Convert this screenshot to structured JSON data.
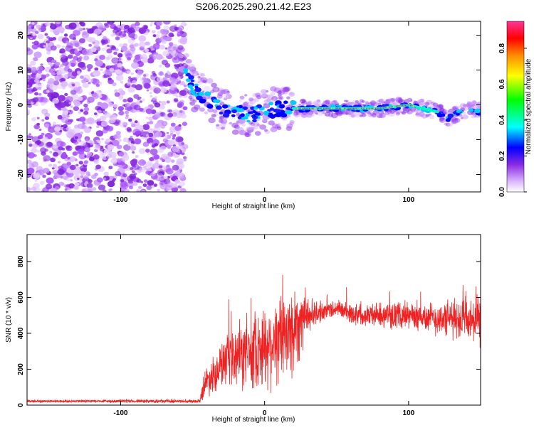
{
  "chart_data": [
    {
      "type": "heatmap",
      "title": "S206.2025.290.21.42.E23",
      "xlabel": "Height of straight line (km)",
      "ylabel": "Frequency (Hz)",
      "xlim": [
        -165,
        150
      ],
      "ylim": [
        -25,
        24
      ],
      "xticks": [
        -100,
        0,
        100
      ],
      "xtick_labels": [
        "-100",
        "0",
        "100"
      ],
      "yticks": [
        -20,
        -10,
        0,
        10,
        20
      ],
      "ytick_labels": [
        "-20",
        "-10",
        "0",
        "10",
        "20"
      ],
      "noise_region_x": [
        -165,
        -55
      ],
      "signal_track": {
        "x": [
          -55,
          -48,
          -40,
          -30,
          -20,
          -10,
          0,
          10,
          20,
          40,
          60,
          80,
          100,
          110,
          120,
          128,
          135,
          142,
          150
        ],
        "y": [
          9,
          4,
          2,
          -1,
          -2,
          -3,
          -2,
          -1,
          -1,
          -1,
          -1,
          -1,
          0,
          -1,
          -2,
          -4,
          -2,
          -1,
          -2
        ]
      },
      "colorbar": {
        "label": "Normalized spectral amplitude",
        "range": [
          0,
          0.95
        ],
        "ticks": [
          0.0,
          0.2,
          0.4,
          0.6,
          0.8
        ],
        "tick_labels": [
          "0.0",
          "0.2",
          "0.4",
          "0.6",
          "0.8"
        ],
        "colors": [
          "#ffffff",
          "#d9b3ff",
          "#8a2be2",
          "#0000ff",
          "#00ffff",
          "#00ff00",
          "#ffff00",
          "#ff8c00",
          "#ff0000",
          "#ff69b4"
        ]
      }
    },
    {
      "type": "line",
      "xlabel": "Height of straight line (km)",
      "ylabel": "SNR (10 * v/v)",
      "xlim": [
        -165,
        150
      ],
      "ylim": [
        0,
        950
      ],
      "xticks": [
        -100,
        0,
        100
      ],
      "xtick_labels": [
        "-100",
        "0",
        "100"
      ],
      "yticks": [
        0,
        200,
        400,
        600,
        800
      ],
      "ytick_labels": [
        "0",
        "200",
        "400",
        "600",
        "800"
      ],
      "color": "#ee2222",
      "envelope": {
        "x": [
          -165,
          -45,
          -42,
          -30,
          -20,
          -10,
          0,
          10,
          20,
          25,
          30,
          40,
          50,
          60,
          80,
          100,
          120,
          135,
          150
        ],
        "mean": [
          22,
          22,
          120,
          220,
          260,
          300,
          330,
          360,
          420,
          480,
          500,
          520,
          540,
          510,
          500,
          500,
          480,
          480,
          460
        ],
        "spread": [
          10,
          12,
          90,
          150,
          200,
          250,
          280,
          300,
          320,
          250,
          120,
          60,
          60,
          70,
          80,
          90,
          110,
          140,
          160
        ]
      }
    }
  ]
}
